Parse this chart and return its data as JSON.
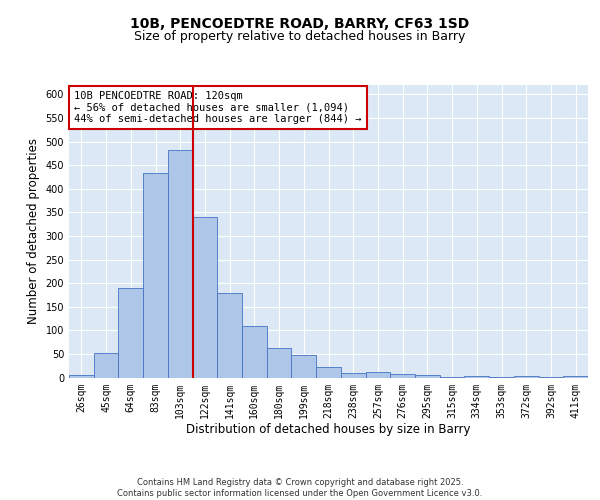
{
  "title": "10B, PENCOEDTRE ROAD, BARRY, CF63 1SD",
  "subtitle": "Size of property relative to detached houses in Barry",
  "xlabel": "Distribution of detached houses by size in Barry",
  "ylabel": "Number of detached properties",
  "categories": [
    "26sqm",
    "45sqm",
    "64sqm",
    "83sqm",
    "103sqm",
    "122sqm",
    "141sqm",
    "160sqm",
    "180sqm",
    "199sqm",
    "218sqm",
    "238sqm",
    "257sqm",
    "276sqm",
    "295sqm",
    "315sqm",
    "334sqm",
    "353sqm",
    "372sqm",
    "392sqm",
    "411sqm"
  ],
  "values": [
    5,
    52,
    190,
    433,
    483,
    340,
    180,
    110,
    62,
    47,
    23,
    9,
    12,
    7,
    5,
    1,
    4,
    1,
    3,
    1,
    4
  ],
  "bar_color": "#aec6e8",
  "bar_edge_color": "#4472c4",
  "vline_x_index": 5,
  "vline_color": "#cc0000",
  "annotation_text": "10B PENCOEDTRE ROAD: 120sqm\n← 56% of detached houses are smaller (1,094)\n44% of semi-detached houses are larger (844) →",
  "annotation_box_color": "#ffffff",
  "annotation_box_edge_color": "#cc0000",
  "ylim": [
    0,
    620
  ],
  "yticks": [
    0,
    50,
    100,
    150,
    200,
    250,
    300,
    350,
    400,
    450,
    500,
    550,
    600
  ],
  "background_color": "#dce8f5",
  "grid_color": "#ffffff",
  "footer_text": "Contains HM Land Registry data © Crown copyright and database right 2025.\nContains public sector information licensed under the Open Government Licence v3.0.",
  "title_fontsize": 10,
  "subtitle_fontsize": 9,
  "axis_label_fontsize": 8.5,
  "tick_fontsize": 7,
  "annotation_fontsize": 7.5,
  "footer_fontsize": 6
}
